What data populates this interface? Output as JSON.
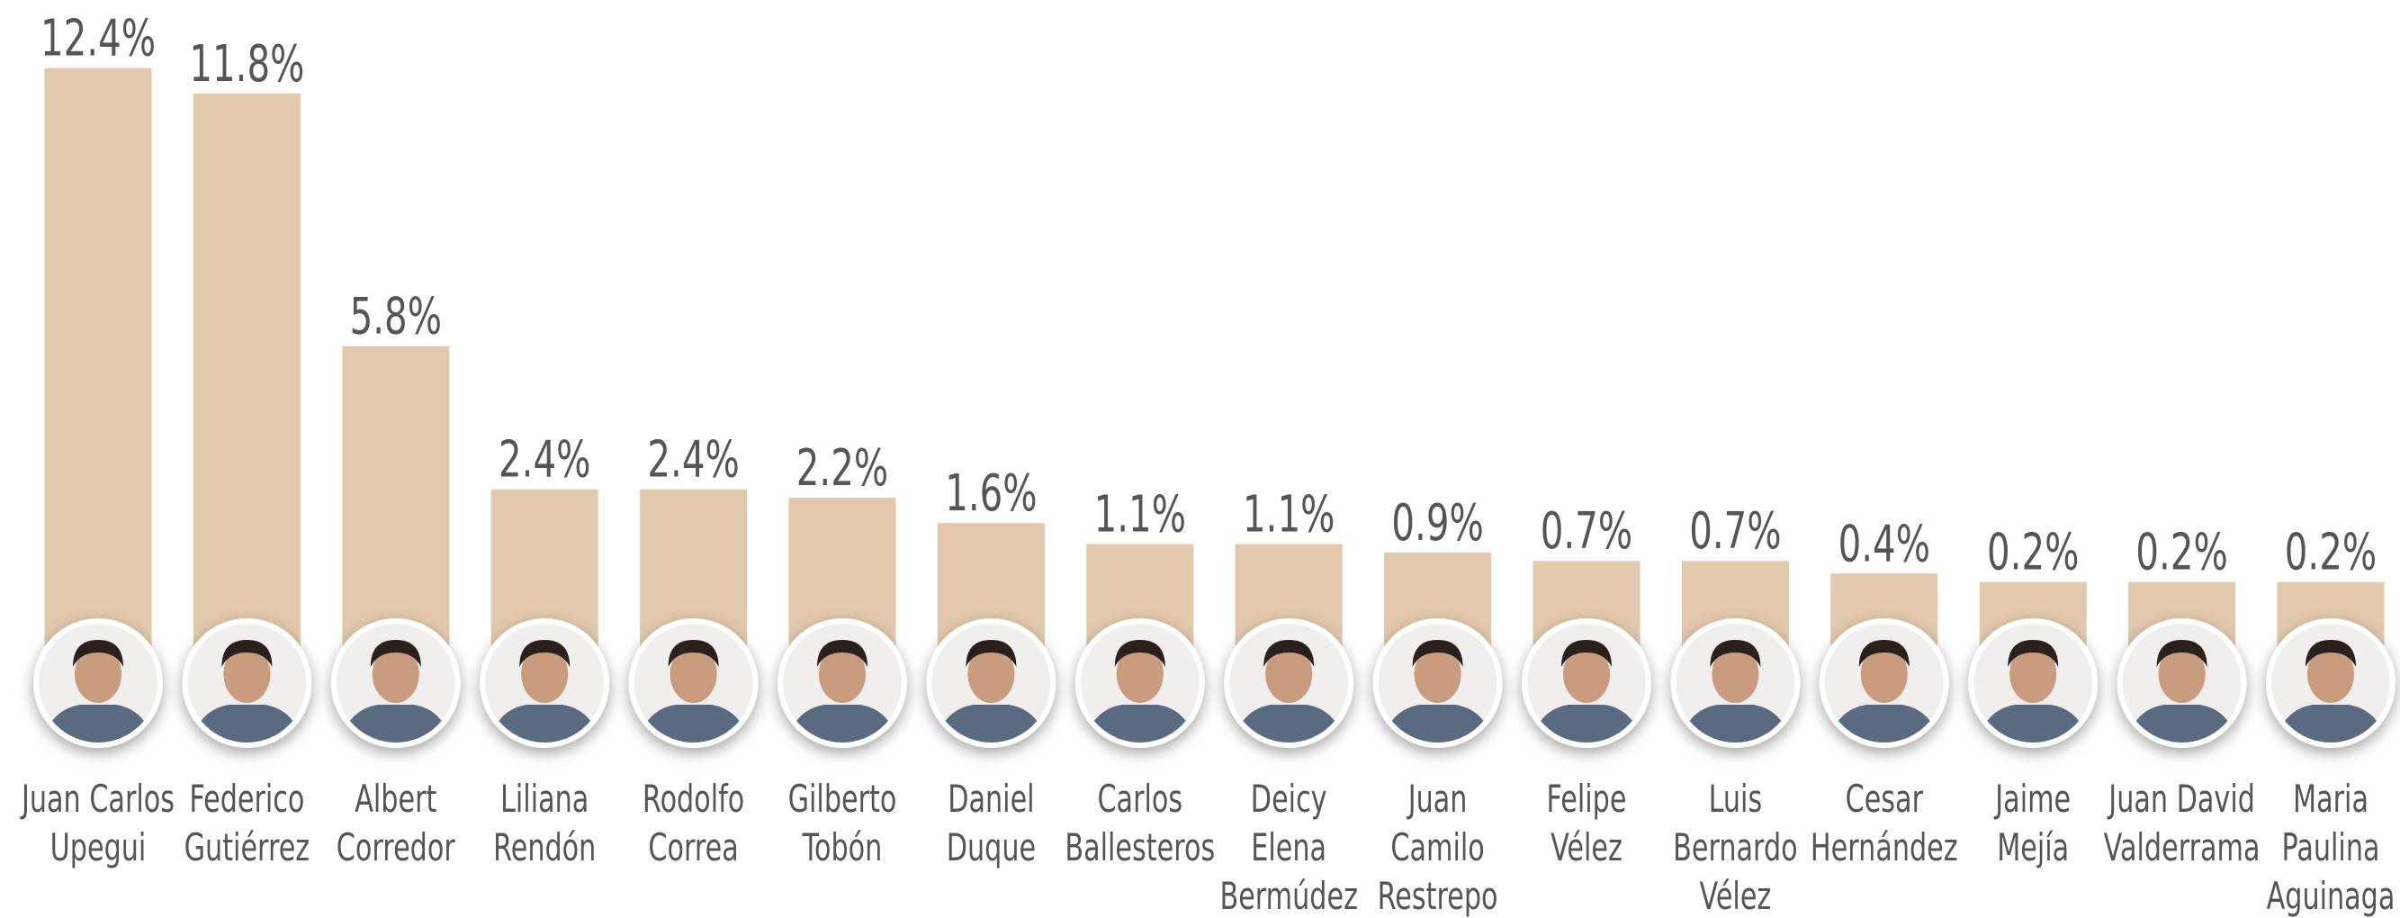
{
  "chart_data": {
    "type": "bar",
    "color": "#e2c8ac",
    "categories": [
      [
        "Juan Carlos",
        "Upegui"
      ],
      [
        "Federico",
        "Gutiérrez"
      ],
      [
        "Albert",
        "Corredor"
      ],
      [
        "Liliana",
        "Rendón"
      ],
      [
        "Rodolfo",
        "Correa"
      ],
      [
        "Gilberto",
        "Tobón"
      ],
      [
        "Daniel",
        "Duque"
      ],
      [
        "Carlos",
        "Ballesteros"
      ],
      [
        "Deicy",
        "Elena",
        "Bermúdez"
      ],
      [
        "Juan",
        "Camilo",
        "Restrepo"
      ],
      [
        "Felipe",
        "Vélez"
      ],
      [
        "Luis",
        "Bernardo",
        "Vélez"
      ],
      [
        "Cesar",
        "Hernández"
      ],
      [
        "Jaime",
        "Mejía"
      ],
      [
        "Juan David",
        "Valderrama"
      ],
      [
        "Maria",
        "Paulina",
        "Aguinaga"
      ]
    ],
    "values": [
      12.4,
      11.8,
      5.8,
      2.4,
      2.4,
      2.2,
      1.6,
      1.1,
      1.1,
      0.9,
      0.7,
      0.7,
      0.4,
      0.2,
      0.2,
      0.2
    ],
    "value_labels": [
      "12.4%",
      "11.8%",
      "5.8%",
      "2.4%",
      "2.4%",
      "2.2%",
      "1.6%",
      "1.1%",
      "1.1%",
      "0.9%",
      "0.7%",
      "0.7%",
      "0.4%",
      "0.2%",
      "0.2%",
      "0.2%"
    ]
  }
}
